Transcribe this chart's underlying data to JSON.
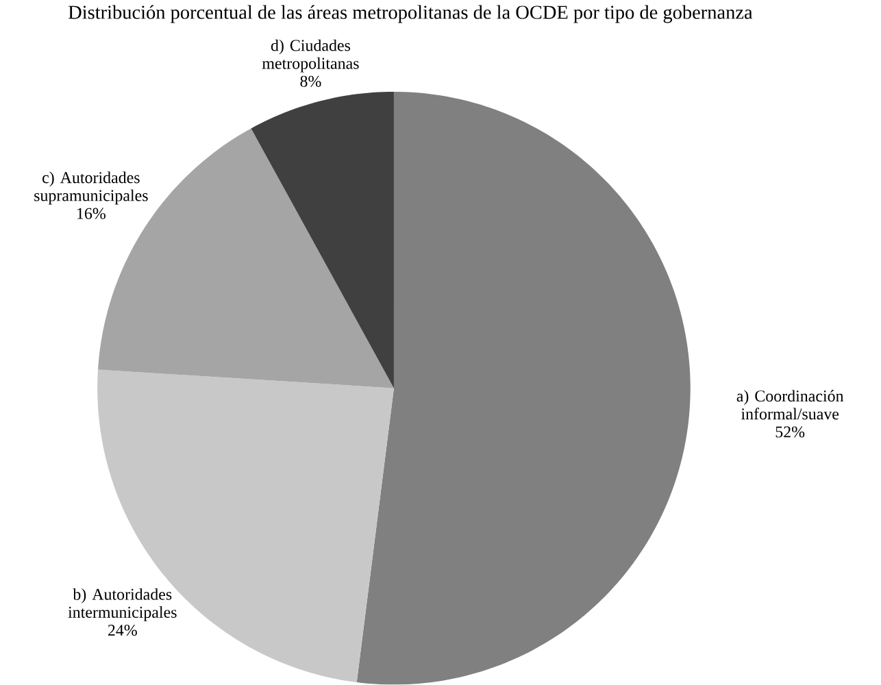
{
  "chart_data": {
    "type": "pie",
    "title": "Distribución porcentual de las áreas metropolitanas de la OCDE por tipo de gobernanza",
    "categories": [
      "a) Coordinación informal/suave",
      "b) Autoridades intermunicipales",
      "c) Autoridades supramunicipales",
      "d) Ciudades metropolitanas"
    ],
    "values": [
      52,
      24,
      16,
      8
    ],
    "value_labels": [
      "52%",
      "24%",
      "16%",
      "8%"
    ],
    "colors": [
      "#808080",
      "#c8c8c8",
      "#a5a5a5",
      "#404040"
    ]
  }
}
